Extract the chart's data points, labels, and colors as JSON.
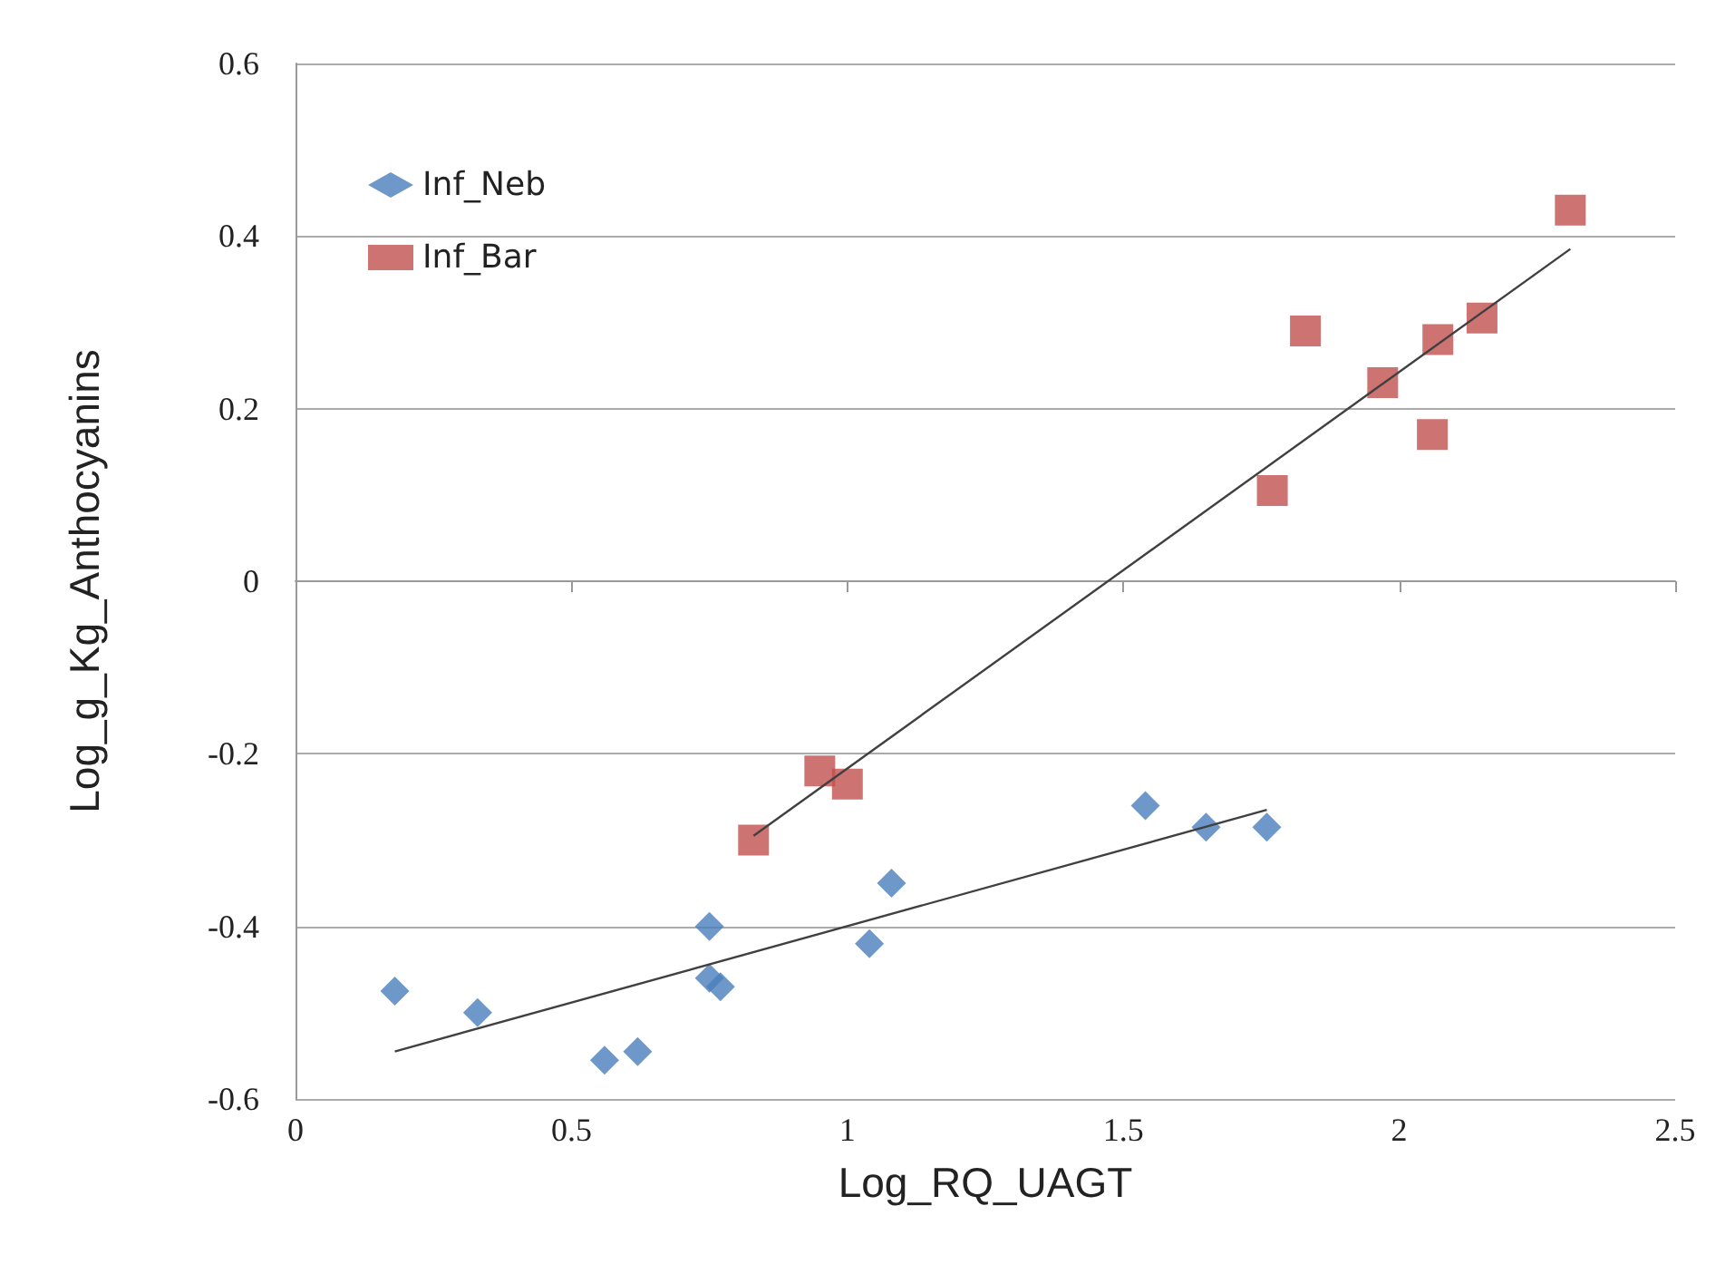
{
  "chart_data": {
    "type": "scatter",
    "xlabel": "Log_RQ_UAGT",
    "ylabel": "Log_g_Kg_Anthocyanins",
    "xlim": [
      0,
      2.5
    ],
    "xticks": [
      0,
      0.5,
      1,
      1.5,
      2,
      2.5
    ],
    "ylim": [
      -0.6,
      0.6
    ],
    "yticks": [
      -0.6,
      -0.4,
      -0.2,
      0,
      0.2,
      0.4,
      0.6
    ],
    "grid": "y",
    "legend": "top left",
    "series": [
      {
        "name": "Inf_Neb",
        "color": "#4a7ebb",
        "marker": "diamond",
        "x": [
          0.18,
          0.33,
          0.56,
          0.62,
          0.75,
          0.75,
          0.77,
          1.04,
          1.08,
          1.54,
          1.65,
          1.76
        ],
        "values": [
          -0.475,
          -0.5,
          -0.555,
          -0.545,
          -0.4,
          -0.46,
          -0.47,
          -0.42,
          -0.35,
          -0.26,
          -0.285,
          -0.285
        ]
      },
      {
        "name": "Inf_Bar",
        "color": "#c0504d",
        "marker": "square",
        "x": [
          0.83,
          0.95,
          1.0,
          1.77,
          1.83,
          1.97,
          2.06,
          2.07,
          2.15,
          2.31
        ],
        "values": [
          -0.3,
          -0.22,
          -0.235,
          0.105,
          0.29,
          0.23,
          0.17,
          0.28,
          0.305,
          0.43
        ]
      },
      {
        "type": "line",
        "color": "#404040",
        "marker": "none",
        "x": [
          0.18,
          1.76
        ],
        "values": [
          -0.545,
          -0.265
        ]
      },
      {
        "type": "line",
        "color": "#404040",
        "marker": "none",
        "x": [
          0.83,
          2.31
        ],
        "values": [
          -0.295,
          0.385
        ]
      }
    ]
  }
}
